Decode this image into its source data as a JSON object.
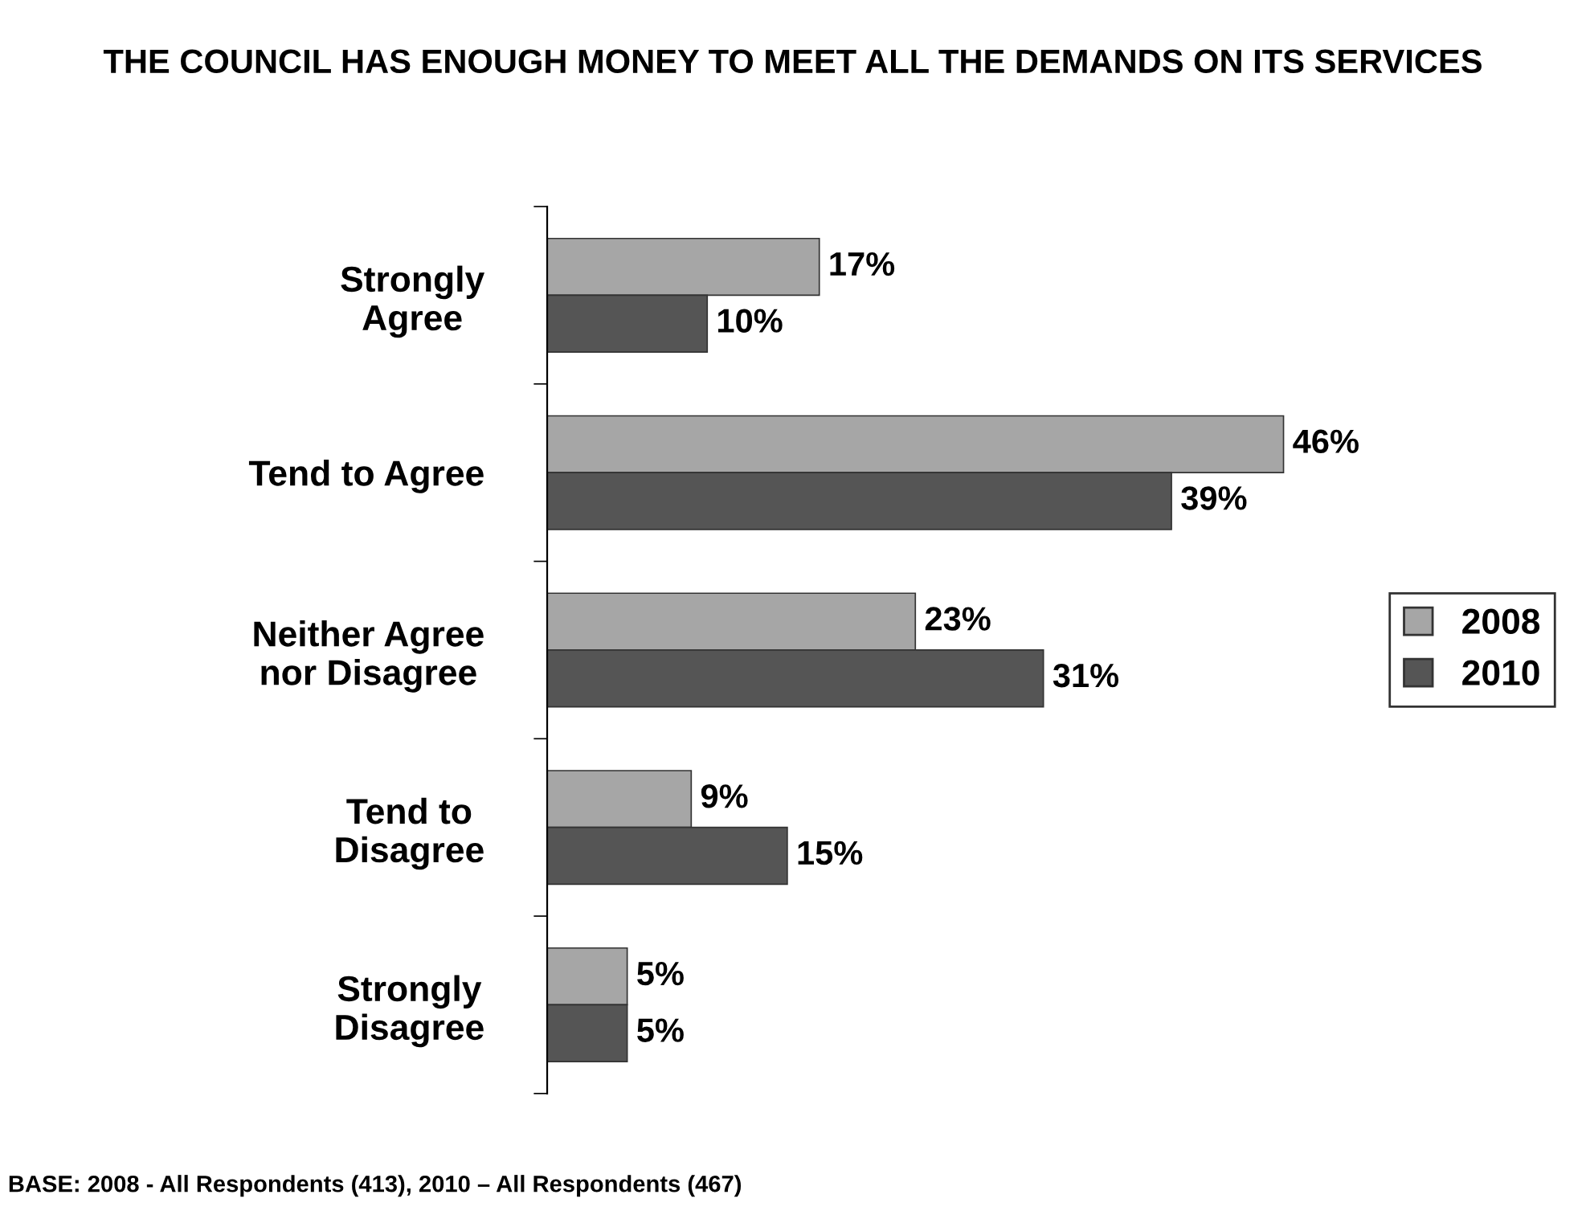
{
  "chart_data": {
    "type": "bar",
    "orientation": "horizontal",
    "title": "THE COUNCIL HAS ENOUGH MONEY TO MEET ALL THE DEMANDS ON ITS SERVICES",
    "categories": [
      "Strongly\nAgree",
      "Tend to Agree",
      "Neither Agree\nnor Disagree",
      "Tend to\nDisagree",
      "Strongly\nDisagree"
    ],
    "series": [
      {
        "name": "2008",
        "color": "#a6a6a6",
        "values": [
          17,
          46,
          23,
          9,
          5
        ],
        "value_labels": [
          "17%",
          "46%",
          "23%",
          "9%",
          "5%"
        ]
      },
      {
        "name": "2010",
        "color": "#555555",
        "values": [
          10,
          39,
          31,
          15,
          5
        ],
        "value_labels": [
          "10%",
          "39%",
          "31%",
          "15%",
          "5%"
        ]
      }
    ],
    "legend": "right",
    "grid": false,
    "tick_labels": "y",
    "annotations": [
      "BASE: 2008 - All Respondents (413), 2010 – All Respondents (467)"
    ]
  }
}
